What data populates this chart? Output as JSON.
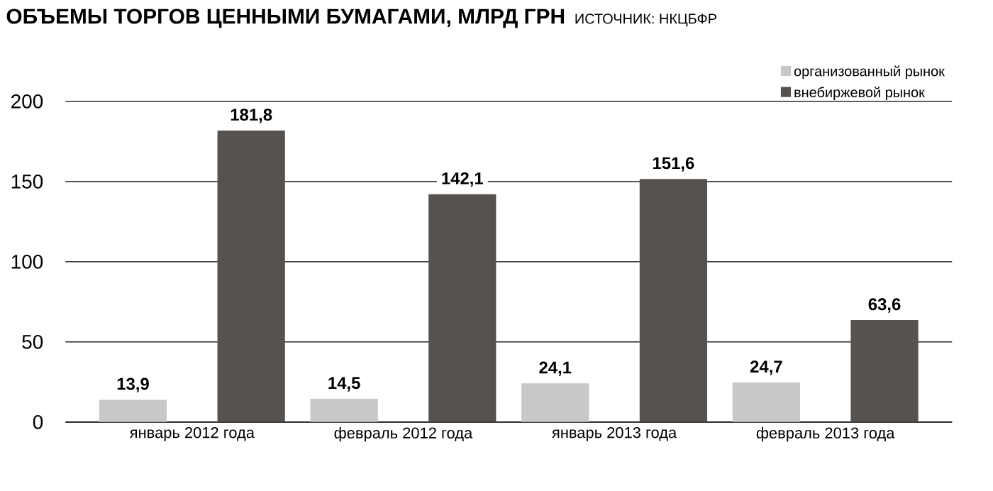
{
  "chart_data": {
    "type": "bar",
    "title": "ОБЪЕМЫ ТОРГОВ ЦЕННЫМИ БУМАГАМИ, МЛРД ГРН",
    "annotations": [
      "ИСТОЧНИК: НКЦБФР"
    ],
    "categories": [
      "январь 2012 года",
      "февраль 2012 года",
      "январь 2013 года",
      "февраль 2013 года"
    ],
    "series": [
      {
        "name": "организованный рынок",
        "color": "#c8c8c8",
        "values": [
          13.9,
          14.5,
          24.1,
          24.7
        ],
        "value_labels": [
          "13,9",
          "14,5",
          "24,1",
          "24,7"
        ]
      },
      {
        "name": "внебиржевой рынок",
        "color": "#55524f",
        "values": [
          181.8,
          142.1,
          151.6,
          63.6
        ],
        "value_labels": [
          "181,8",
          "142,1",
          "151,6",
          "63,6"
        ]
      }
    ],
    "ylim": [
      0,
      200
    ],
    "yticks": [
      0,
      50,
      100,
      150,
      200
    ],
    "grid": "y",
    "legend": "top right"
  }
}
